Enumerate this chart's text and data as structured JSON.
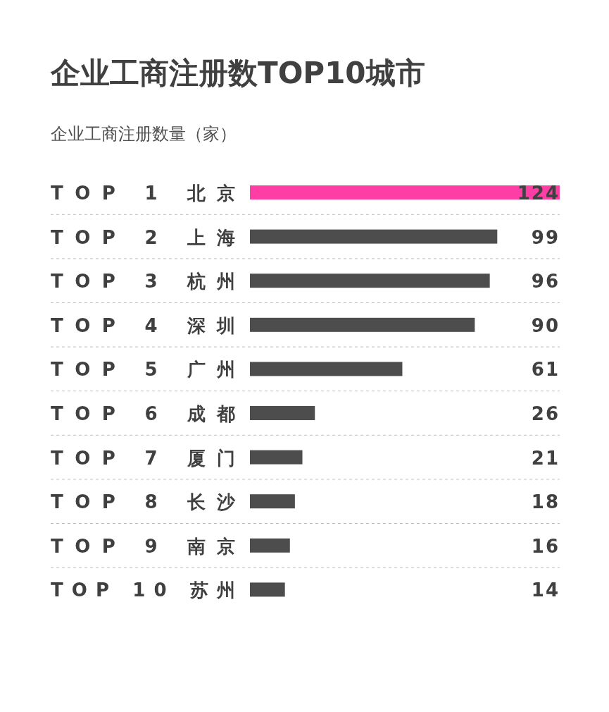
{
  "chart_data": {
    "type": "bar",
    "orientation": "horizontal",
    "title": "企业工商注册数TOP10城市",
    "subtitle": "企业工商注册数量（家）",
    "categories": [
      "TOP 1 北京",
      "TOP 2 上海",
      "TOP 3 杭州",
      "TOP 4 深圳",
      "TOP 5 广州",
      "TOP 6 成都",
      "TOP 7 厦门",
      "TOP 8 长沙",
      "TOP 9 南京",
      "TOP 10 苏州"
    ],
    "values": [
      124,
      99,
      96,
      90,
      61,
      26,
      21,
      18,
      16,
      14
    ],
    "colors": [
      "#ff3ea5",
      "#4d4d4d",
      "#4d4d4d",
      "#4d4d4d",
      "#4d4d4d",
      "#4d4d4d",
      "#4d4d4d",
      "#4d4d4d",
      "#4d4d4d",
      "#4d4d4d"
    ],
    "xlim": [
      0,
      124
    ],
    "data_labels": true
  }
}
